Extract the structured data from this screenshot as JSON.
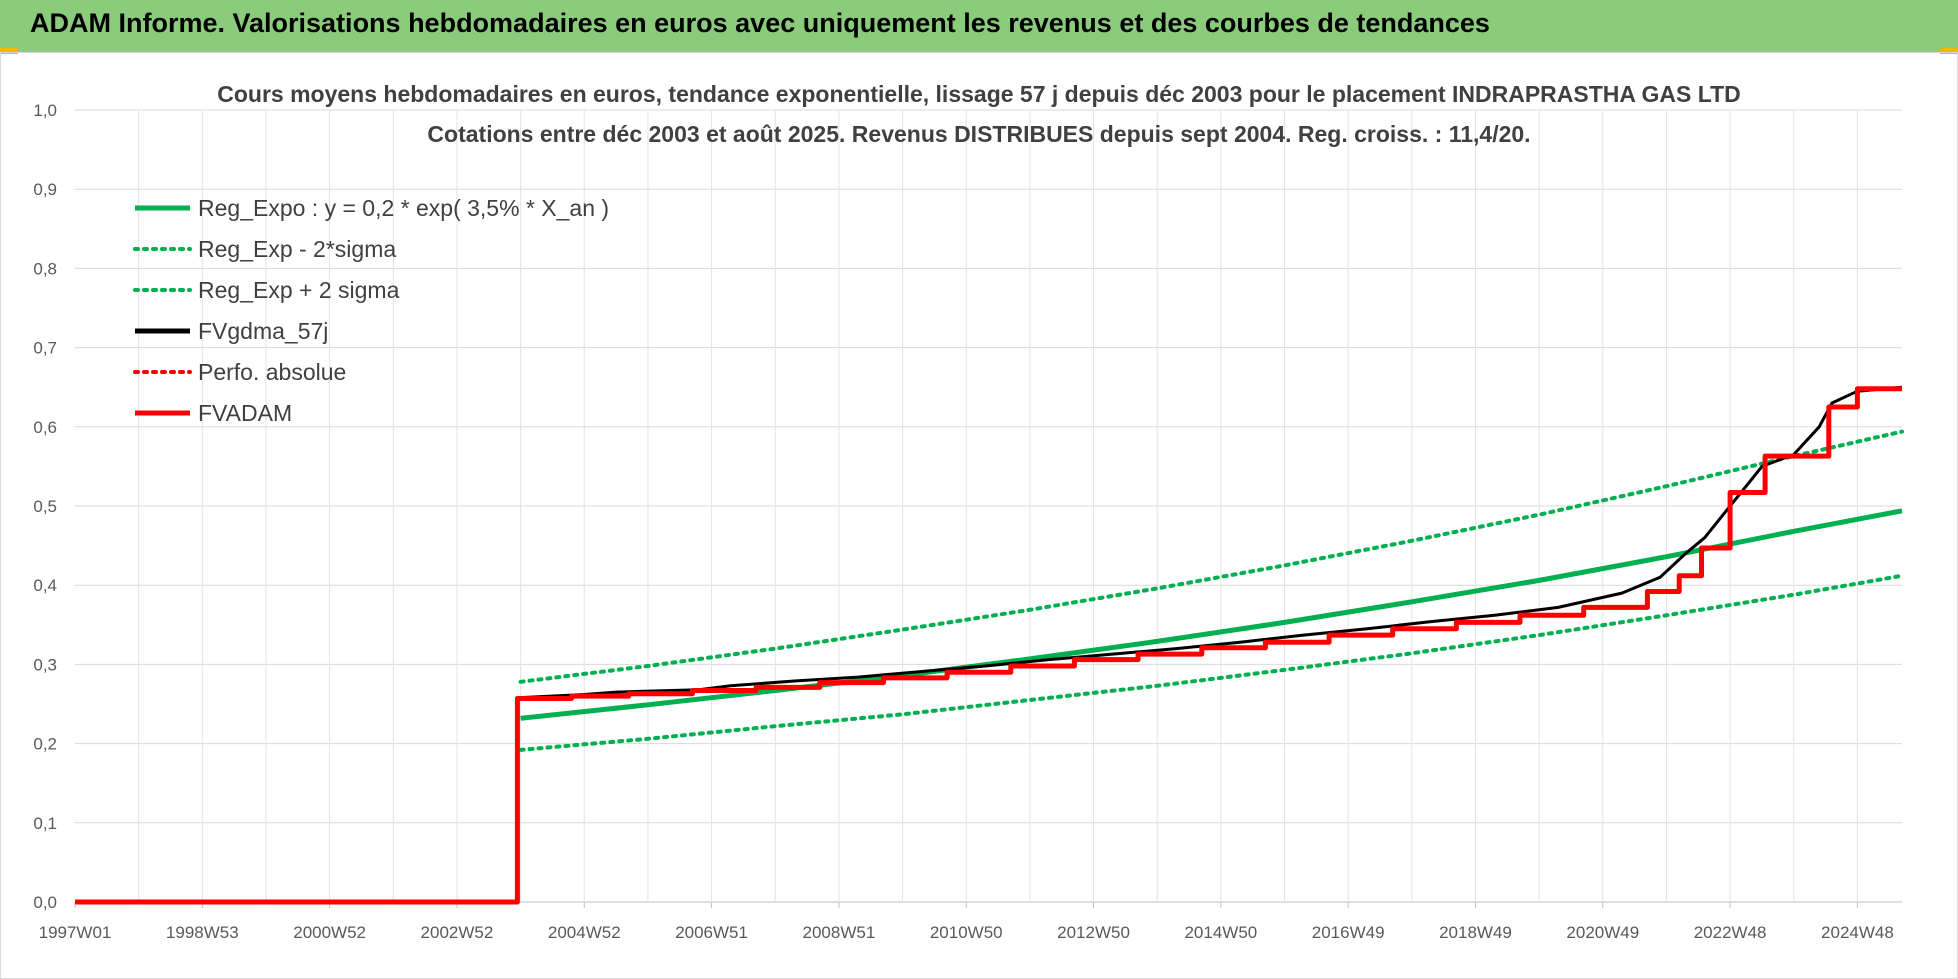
{
  "header": {
    "title": "ADAM Informe. Valorisations hebdomadaires en euros avec uniquement les revenus et des courbes de tendances",
    "background_color": "#8bcb7c"
  },
  "chart_data": {
    "type": "line",
    "title": [
      "Cours moyens hebdomadaires en euros, tendance exponentielle, lissage 57 j depuis déc 2003 pour le placement INDRAPRASTHA GAS LTD",
      "Cotations entre déc 2003 et août 2025. Revenus DISTRIBUES depuis sept 2004. Reg. croiss. : 11,4/20."
    ],
    "xlabel": "",
    "ylabel": "",
    "x_unit": "year",
    "xlim": [
      1997.0,
      2025.7
    ],
    "ylim": [
      0.0,
      1.0
    ],
    "y_ticks": [
      "0,0",
      "0,1",
      "0,2",
      "0,3",
      "0,4",
      "0,5",
      "0,6",
      "0,7",
      "0,8",
      "0,9",
      "1,0"
    ],
    "x_ticks": [
      {
        "x": 1997.0,
        "label": "1997W01"
      },
      {
        "x": 1999.0,
        "label": "1998W53"
      },
      {
        "x": 2001.0,
        "label": "2000W52"
      },
      {
        "x": 2003.0,
        "label": "2002W52"
      },
      {
        "x": 2005.0,
        "label": "2004W52"
      },
      {
        "x": 2007.0,
        "label": "2006W51"
      },
      {
        "x": 2009.0,
        "label": "2008W51"
      },
      {
        "x": 2011.0,
        "label": "2010W50"
      },
      {
        "x": 2013.0,
        "label": "2012W50"
      },
      {
        "x": 2015.0,
        "label": "2014W50"
      },
      {
        "x": 2017.0,
        "label": "2016W49"
      },
      {
        "x": 2019.0,
        "label": "2018W49"
      },
      {
        "x": 2021.0,
        "label": "2020W49"
      },
      {
        "x": 2023.0,
        "label": "2022W48"
      },
      {
        "x": 2025.0,
        "label": "2024W48"
      }
    ],
    "grid": true,
    "legend_position": "top-left",
    "series": [
      {
        "name": "Reg_Expo : y = 0,2 * exp( 3,5% *  X_an )",
        "color": "#00b050",
        "style": "solid",
        "x": [
          2004.0,
          2006.0,
          2008.0,
          2010.0,
          2012.0,
          2014.0,
          2016.0,
          2018.0,
          2020.0,
          2022.0,
          2024.0,
          2025.7
        ],
        "y": [
          0.232,
          0.249,
          0.267,
          0.286,
          0.307,
          0.329,
          0.353,
          0.379,
          0.406,
          0.436,
          0.468,
          0.494
        ]
      },
      {
        "name": "Reg_Exp - 2*sigma",
        "color": "#00b050",
        "style": "dotted",
        "x": [
          2004.0,
          2006.0,
          2008.0,
          2010.0,
          2012.0,
          2014.0,
          2016.0,
          2018.0,
          2020.0,
          2022.0,
          2024.0,
          2025.7
        ],
        "y": [
          0.192,
          0.206,
          0.222,
          0.237,
          0.255,
          0.273,
          0.293,
          0.314,
          0.337,
          0.362,
          0.388,
          0.412
        ]
      },
      {
        "name": "Reg_Exp + 2 sigma",
        "color": "#00b050",
        "style": "dotted",
        "x": [
          2004.0,
          2006.0,
          2008.0,
          2010.0,
          2012.0,
          2014.0,
          2016.0,
          2018.0,
          2020.0,
          2022.0,
          2024.0,
          2025.7
        ],
        "y": [
          0.278,
          0.298,
          0.32,
          0.344,
          0.369,
          0.396,
          0.425,
          0.456,
          0.489,
          0.525,
          0.563,
          0.594
        ]
      },
      {
        "name": "FVgdma_57j",
        "color": "#000000",
        "style": "solid",
        "x": [
          1997.0,
          2003.95,
          2003.96,
          2005.0,
          2005.5,
          2006.8,
          2007.3,
          2008.3,
          2009.3,
          2010.3,
          2011.3,
          2012.3,
          2013.3,
          2014.3,
          2015.3,
          2016.3,
          2017.3,
          2018.3,
          2019.3,
          2020.3,
          2021.3,
          2021.9,
          2022.3,
          2022.6,
          2023.0,
          2023.2,
          2023.5,
          2024.0,
          2024.4,
          2024.6,
          2025.0,
          2025.7
        ],
        "y": [
          0.0,
          0.0,
          0.258,
          0.262,
          0.265,
          0.268,
          0.273,
          0.279,
          0.284,
          0.291,
          0.298,
          0.306,
          0.313,
          0.32,
          0.328,
          0.337,
          0.345,
          0.354,
          0.362,
          0.372,
          0.39,
          0.41,
          0.44,
          0.46,
          0.5,
          0.52,
          0.55,
          0.565,
          0.6,
          0.63,
          0.645,
          0.65
        ]
      },
      {
        "name": "Perfo. absolue",
        "color": "#ff0000",
        "style": "dotted",
        "x": [],
        "y": []
      },
      {
        "name": "FVADAM",
        "color": "#ff0000",
        "style": "solid",
        "x": [
          1997.0,
          2003.95,
          2003.95,
          2004.8,
          2004.8,
          2005.7,
          2005.7,
          2006.7,
          2006.7,
          2007.7,
          2007.7,
          2008.7,
          2008.7,
          2009.7,
          2009.7,
          2010.7,
          2010.7,
          2011.7,
          2011.7,
          2012.7,
          2012.7,
          2013.7,
          2013.7,
          2014.7,
          2014.7,
          2015.7,
          2015.7,
          2016.7,
          2016.7,
          2017.7,
          2017.7,
          2018.7,
          2018.7,
          2019.7,
          2019.7,
          2020.7,
          2020.7,
          2021.7,
          2021.7,
          2022.2,
          2022.2,
          2022.55,
          2022.55,
          2023.0,
          2023.0,
          2023.55,
          2023.55,
          2024.55,
          2024.55,
          2025.0,
          2025.0,
          2025.7
        ],
        "y": [
          0.0,
          0.0,
          0.257,
          0.257,
          0.26,
          0.26,
          0.263,
          0.263,
          0.267,
          0.267,
          0.271,
          0.271,
          0.277,
          0.277,
          0.283,
          0.283,
          0.29,
          0.29,
          0.298,
          0.298,
          0.306,
          0.306,
          0.313,
          0.313,
          0.321,
          0.321,
          0.328,
          0.328,
          0.337,
          0.337,
          0.345,
          0.345,
          0.353,
          0.353,
          0.362,
          0.362,
          0.372,
          0.372,
          0.392,
          0.392,
          0.412,
          0.412,
          0.447,
          0.447,
          0.517,
          0.517,
          0.563,
          0.563,
          0.625,
          0.625,
          0.648,
          0.648
        ]
      }
    ]
  }
}
